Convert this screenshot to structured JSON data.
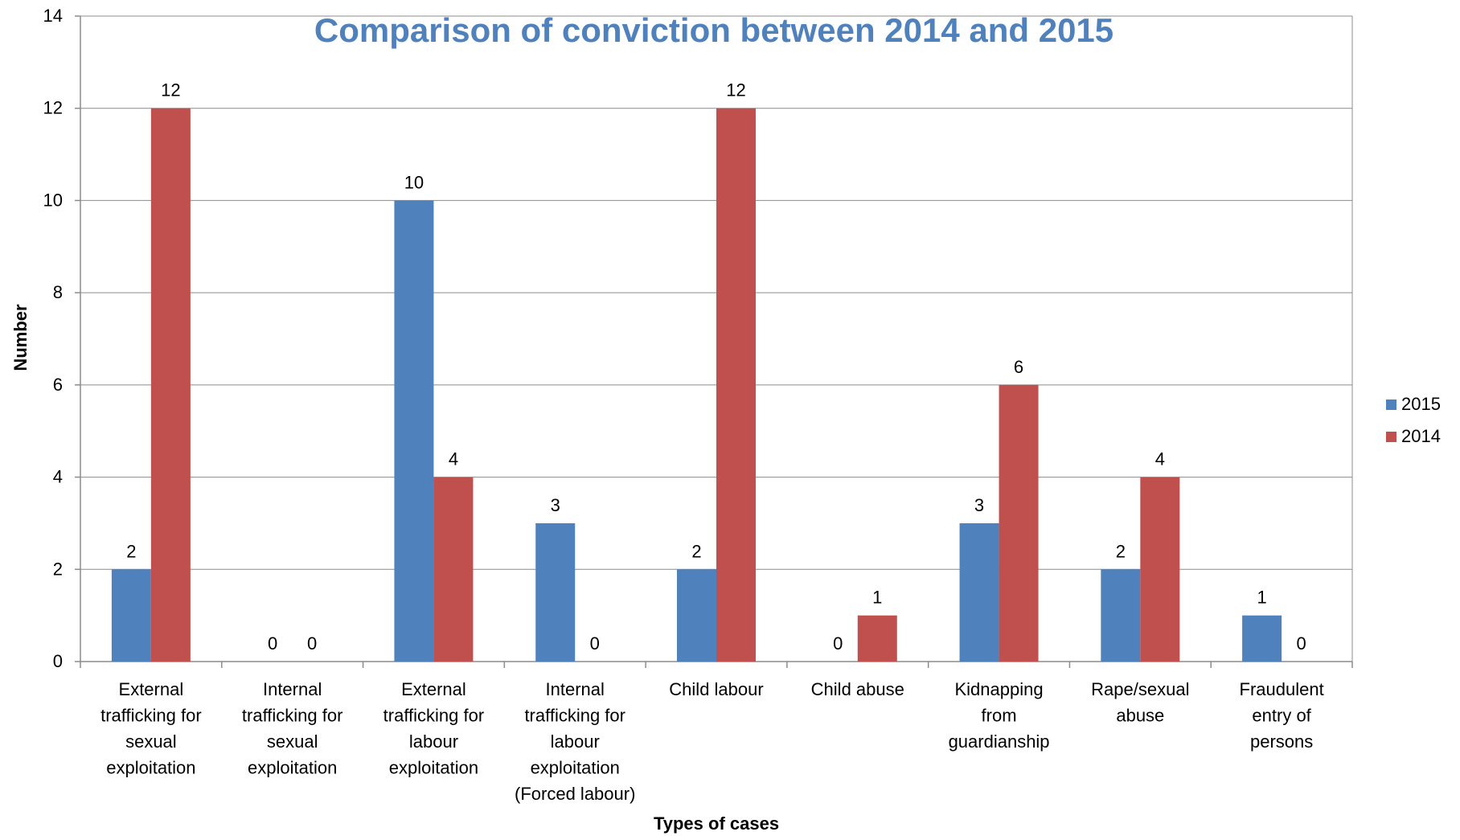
{
  "chart_data": {
    "type": "bar",
    "title": "Comparison of conviction between 2014 and 2015",
    "xlabel": "Types of cases",
    "ylabel": "Number",
    "ylim": [
      0,
      14
    ],
    "yticks": [
      0,
      2,
      4,
      6,
      8,
      10,
      12,
      14
    ],
    "grid": true,
    "legend_position": "right",
    "categories": [
      [
        "External",
        "trafficking for",
        "sexual",
        "exploitation"
      ],
      [
        "Internal",
        "trafficking for",
        "sexual",
        "exploitation"
      ],
      [
        "External",
        "trafficking for",
        "labour",
        "exploitation"
      ],
      [
        "Internal",
        "trafficking for",
        "labour",
        "exploitation",
        "(Forced labour)"
      ],
      [
        "Child labour"
      ],
      [
        "Child abuse"
      ],
      [
        "Kidnapping",
        "from",
        "guardianship"
      ],
      [
        "Rape/sexual",
        "abuse"
      ],
      [
        "Fraudulent",
        "entry of",
        "persons"
      ]
    ],
    "series": [
      {
        "name": "2015",
        "color": "#4F81BD",
        "values": [
          2,
          0,
          10,
          3,
          2,
          0,
          3,
          2,
          1
        ]
      },
      {
        "name": "2014",
        "color": "#C0504D",
        "values": [
          12,
          0,
          4,
          0,
          12,
          1,
          6,
          4,
          0
        ]
      }
    ]
  }
}
